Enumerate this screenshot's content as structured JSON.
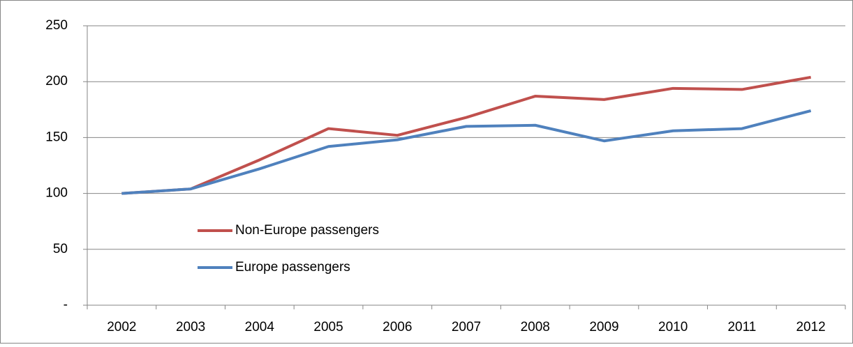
{
  "chart_data": {
    "type": "line",
    "categories": [
      "2002",
      "2003",
      "2004",
      "2005",
      "2006",
      "2007",
      "2008",
      "2009",
      "2010",
      "2011",
      "2012"
    ],
    "series": [
      {
        "name": "Non-Europe passengers",
        "color": "#c0504d",
        "values": [
          100,
          104,
          130,
          158,
          152,
          168,
          187,
          184,
          194,
          193,
          204
        ]
      },
      {
        "name": "Europe passengers",
        "color": "#4f81bd",
        "values": [
          100,
          104,
          122,
          142,
          148,
          160,
          161,
          147,
          156,
          158,
          174
        ]
      }
    ],
    "ylim": [
      0,
      250
    ],
    "yticks": [
      {
        "value": 0,
        "label": "-"
      },
      50,
      100,
      150,
      200,
      250
    ],
    "grid": true
  }
}
